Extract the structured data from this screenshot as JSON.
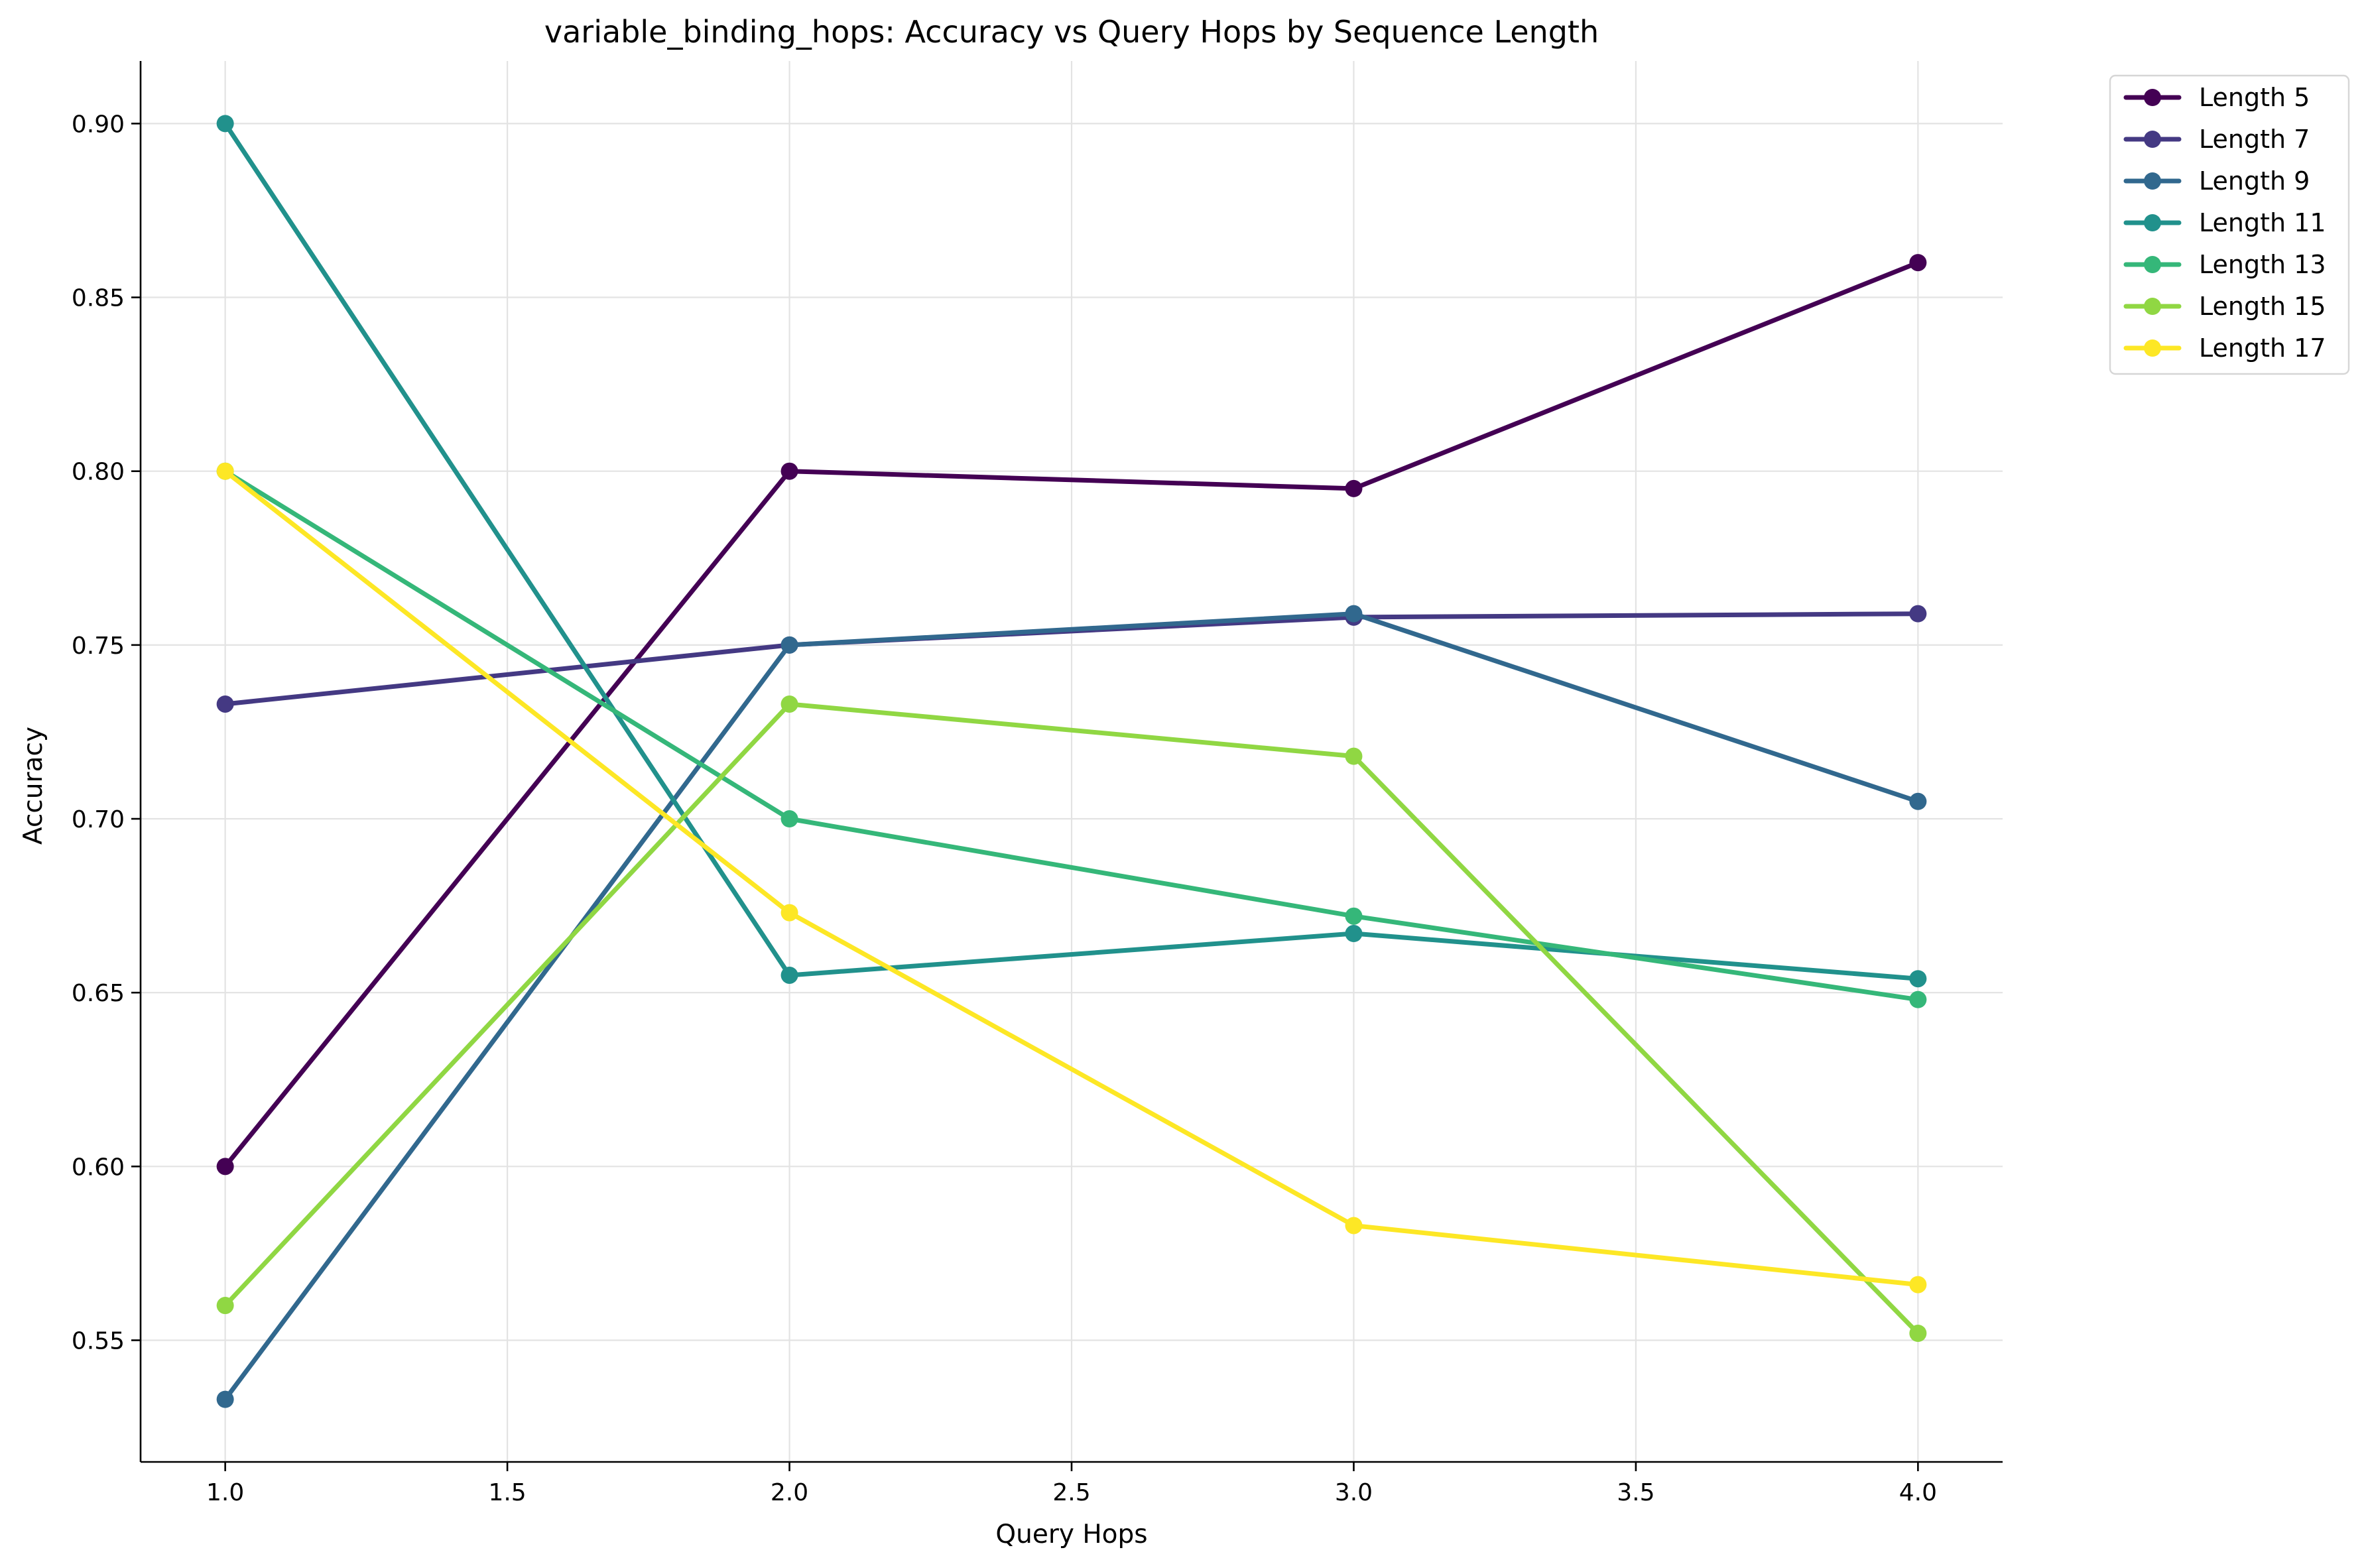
{
  "chart_data": {
    "type": "line",
    "title": "variable_binding_hops: Accuracy vs Query Hops by Sequence Length",
    "xlabel": "Query Hops",
    "ylabel": "Accuracy",
    "xlim": [
      0.85,
      4.15
    ],
    "ylim": [
      0.515,
      0.918
    ],
    "xticks": [
      "1.0",
      "1.5",
      "2.0",
      "2.5",
      "3.0",
      "3.5",
      "4.0"
    ],
    "xtick_values": [
      1.0,
      1.5,
      2.0,
      2.5,
      3.0,
      3.5,
      4.0
    ],
    "yticks": [
      "0.55",
      "0.60",
      "0.65",
      "0.70",
      "0.75",
      "0.80",
      "0.85",
      "0.90"
    ],
    "ytick_values": [
      0.55,
      0.6,
      0.65,
      0.7,
      0.75,
      0.8,
      0.85,
      0.9
    ],
    "grid": true,
    "legend_position": "outside top-right",
    "x": [
      1,
      2,
      3,
      4
    ],
    "series": [
      {
        "name": "Length 5",
        "color": "#440154",
        "values": [
          0.6,
          0.8,
          0.795,
          0.86
        ]
      },
      {
        "name": "Length 7",
        "color": "#443983",
        "values": [
          0.733,
          0.75,
          0.758,
          0.759
        ]
      },
      {
        "name": "Length 9",
        "color": "#31688e",
        "values": [
          0.533,
          0.75,
          0.759,
          0.705
        ]
      },
      {
        "name": "Length 11",
        "color": "#21918c",
        "values": [
          0.9,
          0.655,
          0.667,
          0.654
        ]
      },
      {
        "name": "Length 13",
        "color": "#35b779",
        "values": [
          0.8,
          0.7,
          0.672,
          0.648
        ]
      },
      {
        "name": "Length 15",
        "color": "#90d743",
        "values": [
          0.56,
          0.733,
          0.718,
          0.552
        ]
      },
      {
        "name": "Length 17",
        "color": "#fde725",
        "values": [
          0.8,
          0.673,
          0.583,
          0.566
        ]
      }
    ]
  }
}
